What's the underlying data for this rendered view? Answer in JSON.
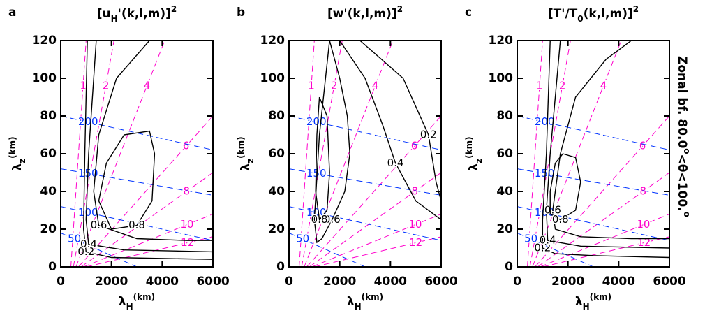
{
  "chart_data": [
    {
      "type": "contour",
      "label": "a",
      "title": [
        "[u",
        "H",
        "'(k,l,m)]",
        "2"
      ],
      "x_label": [
        "λ",
        "H",
        "(km)"
      ],
      "y_label": [
        "λ",
        "z",
        "(km)"
      ],
      "xlim": [
        0,
        6000
      ],
      "ylim": [
        0,
        120
      ],
      "xticks": [
        0,
        2000,
        4000,
        6000
      ],
      "yticks": [
        0,
        20,
        40,
        60,
        80,
        100,
        120
      ],
      "color": "#000000",
      "contours": [
        {
          "level": 0.2,
          "x": [
            1050,
            950,
            900,
            1000,
            2000,
            6000
          ],
          "y": [
            120,
            60,
            20,
            8,
            5,
            4
          ]
        },
        {
          "level": 0.4,
          "x": [
            1400,
            1100,
            1000,
            1100,
            2500,
            6000
          ],
          "y": [
            120,
            60,
            25,
            12,
            9,
            8
          ]
        },
        {
          "level": 0.6,
          "x": [
            3500,
            2200,
            1500,
            1300,
            1500,
            3000,
            5000,
            6000
          ],
          "y": [
            120,
            100,
            70,
            40,
            22,
            15,
            14,
            14
          ]
        },
        {
          "level": 0.8,
          "x": [
            2500,
            3500,
            3700,
            3600,
            3000,
            2000,
            1500,
            1800,
            2500
          ],
          "y": [
            70,
            72,
            60,
            35,
            22,
            20,
            35,
            55,
            70
          ]
        }
      ],
      "magenta": {
        "color": "#ff00cc",
        "lines": [
          {
            "level": 1,
            "x": [
              400,
              1000
            ],
            "y": [
              0,
              120
            ]
          },
          {
            "level": 2,
            "x": [
              500,
              2100
            ],
            "y": [
              0,
              120
            ]
          },
          {
            "level": 4,
            "x": [
              600,
              4100
            ],
            "y": [
              0,
              120
            ]
          },
          {
            "level": 6,
            "x": [
              700,
              6000
            ],
            "y": [
              0,
              80
            ]
          },
          {
            "level": 8,
            "x": [
              800,
              6000
            ],
            "y": [
              0,
              50
            ]
          },
          {
            "level": 10,
            "x": [
              900,
              6000
            ],
            "y": [
              0,
              28
            ]
          },
          {
            "level": 12,
            "x": [
              1000,
              6000
            ],
            "y": [
              0,
              16
            ]
          }
        ]
      },
      "blue": {
        "color": "#0033ff",
        "lines": [
          {
            "level": 200,
            "x": [
              0,
              6000
            ],
            "y": [
              80,
              62
            ]
          },
          {
            "level": 150,
            "x": [
              0,
              6000
            ],
            "y": [
              52,
              38
            ]
          },
          {
            "level": 100,
            "x": [
              0,
              6000
            ],
            "y": [
              32,
              14
            ]
          },
          {
            "level": 50,
            "x": [
              0,
              3000
            ],
            "y": [
              18,
              0
            ]
          }
        ]
      }
    },
    {
      "type": "contour",
      "label": "b",
      "title": [
        "[w'(k,l,m)]",
        "2"
      ],
      "x_label": [
        "λ",
        "H",
        "(km)"
      ],
      "y_label": [
        "λ",
        "z",
        "(km)"
      ],
      "xlim": [
        0,
        6000
      ],
      "ylim": [
        0,
        120
      ],
      "xticks": [
        0,
        2000,
        4000,
        6000
      ],
      "yticks": [
        0,
        20,
        40,
        60,
        80,
        100,
        120
      ],
      "color": "#000000",
      "contours": [
        {
          "level": 0.2,
          "x": [
            2800,
            4500,
            5500,
            5800,
            6000
          ],
          "y": [
            120,
            100,
            70,
            45,
            35
          ]
        },
        {
          "level": 0.4,
          "x": [
            2000,
            3000,
            3700,
            4200,
            5000,
            6000
          ],
          "y": [
            120,
            100,
            75,
            55,
            35,
            25
          ]
        },
        {
          "level": 0.6,
          "x": [
            1600,
            2000,
            2300,
            2400,
            2200,
            1700,
            1300,
            1100,
            1000,
            1200,
            1600
          ],
          "y": [
            120,
            100,
            80,
            60,
            40,
            25,
            15,
            13,
            25,
            70,
            120
          ]
        },
        {
          "level": 0.8,
          "x": [
            1200,
            1500,
            1600,
            1500,
            1200,
            1050,
            1100,
            1200
          ],
          "y": [
            90,
            80,
            50,
            30,
            25,
            40,
            70,
            90
          ]
        }
      ],
      "magenta": {
        "color": "#ff00cc",
        "lines": [
          {
            "level": 1,
            "x": [
              400,
              1000
            ],
            "y": [
              0,
              120
            ]
          },
          {
            "level": 2,
            "x": [
              500,
              2100
            ],
            "y": [
              0,
              120
            ]
          },
          {
            "level": 4,
            "x": [
              600,
              4100
            ],
            "y": [
              0,
              120
            ]
          },
          {
            "level": 6,
            "x": [
              700,
              6000
            ],
            "y": [
              0,
              80
            ]
          },
          {
            "level": 8,
            "x": [
              800,
              6000
            ],
            "y": [
              0,
              50
            ]
          },
          {
            "level": 10,
            "x": [
              900,
              6000
            ],
            "y": [
              0,
              28
            ]
          },
          {
            "level": 12,
            "x": [
              1000,
              6000
            ],
            "y": [
              0,
              16
            ]
          }
        ]
      },
      "blue": {
        "color": "#0033ff",
        "lines": [
          {
            "level": 200,
            "x": [
              0,
              6000
            ],
            "y": [
              80,
              62
            ]
          },
          {
            "level": 150,
            "x": [
              0,
              6000
            ],
            "y": [
              52,
              38
            ]
          },
          {
            "level": 100,
            "x": [
              0,
              6000
            ],
            "y": [
              32,
              14
            ]
          },
          {
            "level": 50,
            "x": [
              0,
              3000
            ],
            "y": [
              18,
              0
            ]
          }
        ]
      }
    },
    {
      "type": "contour",
      "label": "c",
      "title": [
        "[T'/T",
        "0",
        "(k,l,m)]",
        "2"
      ],
      "x_label": [
        "λ",
        "H",
        "(km)"
      ],
      "y_label": [
        "λ",
        "z",
        "(km)"
      ],
      "xlim": [
        0,
        6000
      ],
      "ylim": [
        0,
        120
      ],
      "xticks": [
        0,
        2000,
        4000,
        6000
      ],
      "yticks": [
        0,
        20,
        40,
        60,
        80,
        100,
        120
      ],
      "color": "#000000",
      "side_label": [
        "Zonal bf.   80.0",
        "o",
        "<θ<100.",
        "o"
      ],
      "contours": [
        {
          "level": 0.2,
          "x": [
            1300,
            1150,
            1000,
            1000,
            1500,
            3000,
            6000
          ],
          "y": [
            120,
            60,
            25,
            10,
            7,
            6,
            5
          ]
        },
        {
          "level": 0.4,
          "x": [
            1700,
            1300,
            1150,
            1200,
            2500,
            6000
          ],
          "y": [
            120,
            60,
            30,
            14,
            11,
            10
          ]
        },
        {
          "level": 0.6,
          "x": [
            4500,
            3500,
            2300,
            1700,
            1400,
            1500,
            2500,
            4500,
            6000
          ],
          "y": [
            120,
            110,
            90,
            60,
            30,
            20,
            16,
            15,
            15
          ]
        },
        {
          "level": 0.8,
          "x": [
            1800,
            2300,
            2500,
            2300,
            1700,
            1300,
            1300,
            1500,
            1800
          ],
          "y": [
            60,
            58,
            45,
            30,
            25,
            28,
            40,
            55,
            60
          ]
        }
      ],
      "magenta": {
        "color": "#ff00cc",
        "lines": [
          {
            "level": 1,
            "x": [
              400,
              1000
            ],
            "y": [
              0,
              120
            ]
          },
          {
            "level": 2,
            "x": [
              500,
              2100
            ],
            "y": [
              0,
              120
            ]
          },
          {
            "level": 4,
            "x": [
              600,
              4100
            ],
            "y": [
              0,
              120
            ]
          },
          {
            "level": 6,
            "x": [
              700,
              6000
            ],
            "y": [
              0,
              80
            ]
          },
          {
            "level": 8,
            "x": [
              800,
              6000
            ],
            "y": [
              0,
              50
            ]
          },
          {
            "level": 10,
            "x": [
              900,
              6000
            ],
            "y": [
              0,
              28
            ]
          },
          {
            "level": 12,
            "x": [
              1000,
              6000
            ],
            "y": [
              0,
              16
            ]
          }
        ]
      },
      "blue": {
        "color": "#0033ff",
        "lines": [
          {
            "level": 200,
            "x": [
              0,
              6000
            ],
            "y": [
              80,
              62
            ]
          },
          {
            "level": 150,
            "x": [
              0,
              6000
            ],
            "y": [
              52,
              38
            ]
          },
          {
            "level": 100,
            "x": [
              0,
              6000
            ],
            "y": [
              32,
              14
            ]
          },
          {
            "level": 50,
            "x": [
              0,
              3000
            ],
            "y": [
              18,
              0
            ]
          }
        ]
      }
    }
  ]
}
